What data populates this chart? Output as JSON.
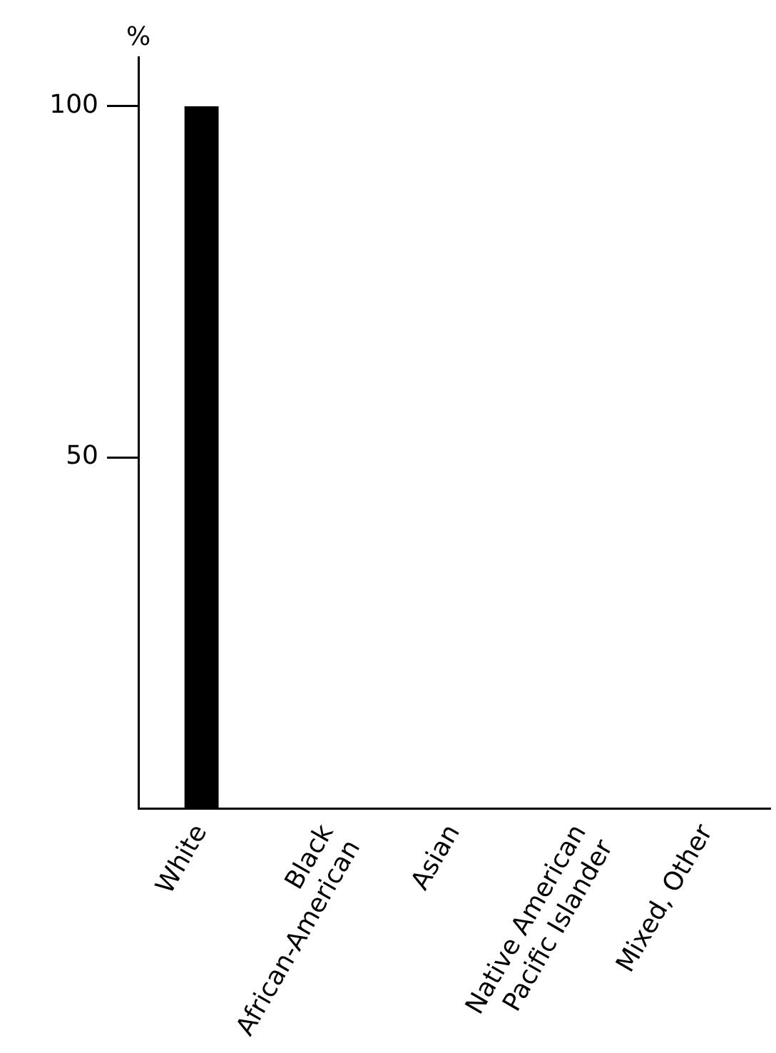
{
  "chart_data": {
    "type": "bar",
    "ylabel": "%",
    "categories": [
      "White",
      "Black\nAfrican-American",
      "Asian",
      "Native American\nPacific Islander",
      "Mixed, Other"
    ],
    "values": [
      100,
      0,
      0,
      0,
      0
    ],
    "color": "#000000",
    "ylim": [
      0,
      107
    ],
    "yticks": [
      50,
      100
    ]
  }
}
